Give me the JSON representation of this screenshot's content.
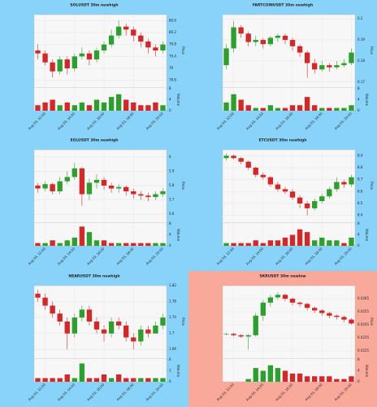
{
  "chart_data": [
    {
      "type": "candlestick",
      "title": "SOLUSDT 30m newhigh",
      "ylabel": "Price",
      "volume_label": "Volume",
      "background": "#87d3f9",
      "up_color": "#2ca02c",
      "down_color": "#d62728",
      "categories": [
        null,
        "Aug 03, 12:00",
        null,
        null,
        null,
        "Aug 03, 14:00",
        null,
        null,
        null,
        "Aug 03, 16:00",
        null,
        null,
        null,
        "Aug 03, 18:00",
        null,
        null,
        null,
        "Aug 03, 20:00"
      ],
      "open": [
        79.6,
        79.5,
        79.2,
        78.9,
        79.3,
        79.0,
        79.4,
        79.5,
        79.3,
        79.6,
        79.8,
        80.1,
        80.4,
        80.3,
        80.1,
        79.9,
        79.7,
        79.6
      ],
      "high": [
        79.8,
        79.6,
        79.3,
        79.4,
        79.4,
        79.5,
        79.7,
        79.6,
        79.7,
        79.9,
        80.3,
        80.6,
        80.5,
        80.4,
        80.2,
        80.0,
        79.8,
        79.9
      ],
      "low": [
        79.3,
        79.1,
        78.7,
        78.8,
        78.8,
        78.9,
        79.3,
        79.1,
        79.2,
        79.5,
        79.7,
        80.0,
        80.1,
        79.9,
        79.7,
        79.5,
        79.4,
        79.5
      ],
      "close": [
        79.5,
        79.2,
        78.9,
        79.3,
        79.0,
        79.4,
        79.5,
        79.3,
        79.6,
        79.8,
        80.1,
        80.4,
        80.3,
        80.1,
        79.9,
        79.7,
        79.6,
        79.8
      ],
      "volume": [
        2,
        3,
        4,
        2,
        3,
        2,
        3,
        2,
        4,
        3,
        5,
        6,
        4,
        3,
        2,
        2,
        3,
        2
      ],
      "ylim": [
        78.4,
        80.8
      ],
      "yticks": [
        78.6,
        79.0,
        79.4,
        79.8,
        80.2,
        80.6
      ],
      "volume_ylim": [
        0,
        8
      ],
      "volume_yticks": [
        0,
        4,
        8
      ]
    },
    {
      "type": "candlestick",
      "title": "FARTCOINUSDT 30m newhigh",
      "ylabel": "Price",
      "volume_label": "Volume",
      "background": "#87d3f9",
      "up_color": "#2ca02c",
      "down_color": "#d62728",
      "categories": [
        null,
        "Aug 03, 12:00",
        null,
        null,
        null,
        "Aug 03, 14:00",
        null,
        null,
        null,
        "Aug 03, 16:00",
        null,
        null,
        null,
        "Aug 03, 18:00",
        null,
        null,
        null,
        "Aug 03, 20:00"
      ],
      "open": [
        0.178,
        0.186,
        0.196,
        0.193,
        0.189,
        0.19,
        0.188,
        0.191,
        0.192,
        0.19,
        0.187,
        0.184,
        0.179,
        0.176,
        0.178,
        0.177,
        0.178,
        0.179
      ],
      "high": [
        0.188,
        0.199,
        0.197,
        0.194,
        0.192,
        0.191,
        0.192,
        0.193,
        0.193,
        0.191,
        0.188,
        0.185,
        0.181,
        0.18,
        0.179,
        0.18,
        0.181,
        0.186
      ],
      "low": [
        0.176,
        0.184,
        0.191,
        0.187,
        0.187,
        0.186,
        0.187,
        0.189,
        0.188,
        0.185,
        0.182,
        0.172,
        0.174,
        0.175,
        0.175,
        0.176,
        0.177,
        0.178
      ],
      "close": [
        0.186,
        0.196,
        0.193,
        0.189,
        0.19,
        0.188,
        0.191,
        0.192,
        0.19,
        0.187,
        0.184,
        0.179,
        0.176,
        0.178,
        0.177,
        0.178,
        0.179,
        0.184
      ],
      "volume": [
        3,
        6,
        4,
        2,
        1,
        1,
        2,
        1,
        1,
        2,
        2,
        5,
        2,
        1,
        1,
        1,
        1,
        2
      ],
      "ylim": [
        0.168,
        0.202
      ],
      "yticks": [
        0.17,
        0.18,
        0.19,
        0.2
      ],
      "volume_ylim": [
        0,
        8
      ],
      "volume_yticks": [
        0,
        4,
        8
      ]
    },
    {
      "type": "candlestick",
      "title": "EGLUSDT 30m newhigh",
      "ylabel": "Price",
      "volume_label": "Volume",
      "background": "#87d3f9",
      "up_color": "#2ca02c",
      "down_color": "#d62728",
      "categories": [
        null,
        "Aug 03, 12:00",
        null,
        null,
        null,
        "Aug 03, 14:00",
        null,
        null,
        null,
        "Aug 03, 16:00",
        null,
        null,
        null,
        "Aug 03, 18:00",
        null,
        null,
        null,
        "Aug 03, 20:00"
      ],
      "open": [
        5.8,
        5.78,
        5.81,
        5.76,
        5.83,
        5.86,
        5.92,
        5.74,
        5.82,
        5.84,
        5.8,
        5.78,
        5.79,
        5.76,
        5.74,
        5.73,
        5.72,
        5.74
      ],
      "high": [
        5.82,
        5.83,
        5.82,
        5.86,
        5.9,
        5.96,
        5.93,
        5.85,
        5.88,
        5.86,
        5.82,
        5.81,
        5.8,
        5.78,
        5.76,
        5.75,
        5.76,
        5.78
      ],
      "low": [
        5.75,
        5.76,
        5.74,
        5.74,
        5.81,
        5.84,
        5.66,
        5.7,
        5.78,
        5.77,
        5.75,
        5.75,
        5.73,
        5.71,
        5.7,
        5.69,
        5.7,
        5.72
      ],
      "close": [
        5.78,
        5.81,
        5.76,
        5.83,
        5.86,
        5.92,
        5.74,
        5.82,
        5.84,
        5.8,
        5.78,
        5.79,
        5.76,
        5.74,
        5.73,
        5.72,
        5.74,
        5.76
      ],
      "volume": [
        1,
        1,
        2,
        1,
        2,
        3,
        7,
        5,
        2,
        2,
        1,
        1,
        1,
        1,
        1,
        1,
        1,
        1
      ],
      "ylim": [
        5.55,
        6.05
      ],
      "yticks": [
        5.6,
        5.7,
        5.8,
        5.9,
        6.0
      ],
      "volume_ylim": [
        0,
        8
      ],
      "volume_yticks": [
        0,
        4,
        8
      ]
    },
    {
      "type": "candlestick",
      "title": "ETCUSDT 30m newhigh",
      "ylabel": "Price",
      "volume_label": "Volume",
      "background": "#87d3f9",
      "up_color": "#2ca02c",
      "down_color": "#d62728",
      "categories": [
        null,
        "Aug 03, 12:00",
        null,
        null,
        null,
        "Aug 03, 14:00",
        null,
        null,
        null,
        "Aug 03, 16:00",
        null,
        null,
        null,
        "Aug 03, 18:00",
        null,
        null,
        null,
        "Aug 03, 20:00"
      ],
      "open": [
        8.88,
        8.9,
        8.88,
        8.85,
        8.8,
        8.74,
        8.72,
        8.66,
        8.62,
        8.6,
        8.55,
        8.5,
        8.46,
        8.52,
        8.56,
        8.62,
        8.68,
        8.66
      ],
      "high": [
        8.92,
        8.91,
        8.89,
        8.86,
        8.81,
        8.76,
        8.73,
        8.68,
        8.64,
        8.62,
        8.57,
        8.52,
        8.54,
        8.58,
        8.64,
        8.72,
        8.7,
        8.74
      ],
      "low": [
        8.86,
        8.87,
        8.83,
        8.78,
        8.72,
        8.7,
        8.64,
        8.6,
        8.58,
        8.53,
        8.46,
        8.4,
        8.44,
        8.5,
        8.54,
        8.6,
        8.63,
        8.64
      ],
      "close": [
        8.9,
        8.88,
        8.85,
        8.8,
        8.74,
        8.72,
        8.66,
        8.62,
        8.6,
        8.55,
        8.5,
        8.46,
        8.52,
        8.56,
        8.62,
        8.68,
        8.66,
        8.72
      ],
      "volume": [
        1,
        1,
        1,
        1,
        2,
        1,
        2,
        2,
        3,
        4,
        6,
        5,
        2,
        3,
        2,
        2,
        1,
        3
      ],
      "ylim": [
        8.35,
        8.95
      ],
      "yticks": [
        8.4,
        8.5,
        8.6,
        8.7,
        8.8,
        8.9
      ],
      "volume_ylim": [
        0,
        8
      ],
      "volume_yticks": [
        0,
        4,
        8
      ]
    },
    {
      "type": "candlestick",
      "title": "NEARUSDT 30m newhigh",
      "ylabel": "Price",
      "volume_label": "Volume",
      "background": "#87d3f9",
      "up_color": "#2ca02c",
      "down_color": "#d62728",
      "categories": [
        null,
        "Aug 03, 12:00",
        null,
        null,
        null,
        "Aug 03, 14:00",
        null,
        null,
        null,
        "Aug 03, 16:00",
        null,
        null,
        null,
        "Aug 03, 18:00",
        null,
        null,
        null,
        "Aug 03, 20:00"
      ],
      "open": [
        1.8,
        1.79,
        1.77,
        1.75,
        1.73,
        1.7,
        1.74,
        1.76,
        1.73,
        1.71,
        1.7,
        1.73,
        1.72,
        1.69,
        1.68,
        1.71,
        1.7,
        1.72
      ],
      "high": [
        1.81,
        1.8,
        1.78,
        1.76,
        1.74,
        1.75,
        1.77,
        1.77,
        1.74,
        1.72,
        1.74,
        1.74,
        1.73,
        1.7,
        1.72,
        1.72,
        1.73,
        1.75
      ],
      "low": [
        1.78,
        1.76,
        1.74,
        1.72,
        1.66,
        1.69,
        1.73,
        1.72,
        1.7,
        1.68,
        1.69,
        1.71,
        1.68,
        1.66,
        1.67,
        1.69,
        1.7,
        1.71
      ],
      "close": [
        1.79,
        1.77,
        1.75,
        1.73,
        1.7,
        1.74,
        1.76,
        1.73,
        1.71,
        1.7,
        1.73,
        1.72,
        1.69,
        1.68,
        1.71,
        1.7,
        1.72,
        1.74
      ],
      "volume": [
        1,
        1,
        1,
        1,
        2,
        1,
        5,
        1,
        1,
        2,
        1,
        2,
        1,
        1,
        1,
        1,
        1,
        1
      ],
      "ylim": [
        1.64,
        1.82
      ],
      "yticks": [
        1.66,
        1.7,
        1.74,
        1.78,
        1.82
      ],
      "volume_ylim": [
        0,
        6
      ],
      "volume_yticks": [
        0,
        3,
        6
      ]
    },
    {
      "type": "candlestick",
      "title": "SKRUSDT 30m newlow",
      "ylabel": "Price",
      "volume_label": "Volume",
      "background": "#f9a99a",
      "up_color": "#2ca02c",
      "down_color": "#d62728",
      "categories": [
        null,
        "Aug 03, 12:00",
        null,
        null,
        null,
        "Aug 03, 14:00",
        null,
        null,
        null,
        "Aug 03, 16:00",
        null,
        null,
        null,
        "Aug 03, 18:00",
        null,
        null,
        null,
        "Aug 03, 20:00"
      ],
      "open": [
        0.0238,
        0.0238,
        0.0237,
        0.0236,
        0.0237,
        0.0252,
        0.0262,
        0.0266,
        0.0268,
        0.0265,
        0.0262,
        0.0261,
        0.0258,
        0.0256,
        0.0254,
        0.0252,
        0.0251,
        0.0249
      ],
      "high": [
        0.0239,
        0.0239,
        0.0238,
        0.0238,
        0.0254,
        0.0264,
        0.0268,
        0.027,
        0.0269,
        0.0266,
        0.0263,
        0.0262,
        0.0259,
        0.0257,
        0.0255,
        0.0253,
        0.0252,
        0.025
      ],
      "low": [
        0.0237,
        0.0236,
        0.0235,
        0.0226,
        0.0236,
        0.0248,
        0.0259,
        0.0264,
        0.0263,
        0.026,
        0.0259,
        0.0256,
        0.0254,
        0.0252,
        0.025,
        0.0249,
        0.0247,
        0.0245
      ],
      "close": [
        0.0238,
        0.0237,
        0.0236,
        0.0237,
        0.0252,
        0.0262,
        0.0266,
        0.0268,
        0.0265,
        0.0262,
        0.0261,
        0.0258,
        0.0256,
        0.0254,
        0.0252,
        0.0251,
        0.0249,
        0.0246
      ],
      "volume": [
        0,
        0,
        0,
        1,
        5,
        4,
        6,
        5,
        4,
        3,
        3,
        2,
        2,
        2,
        2,
        1,
        1,
        2
      ],
      "ylim": [
        0.022,
        0.0275
      ],
      "yticks": [
        0.0225,
        0.0235,
        0.0245,
        0.0255,
        0.0265
      ],
      "volume_ylim": [
        0,
        8
      ],
      "volume_yticks": [
        0,
        4,
        8
      ]
    }
  ]
}
